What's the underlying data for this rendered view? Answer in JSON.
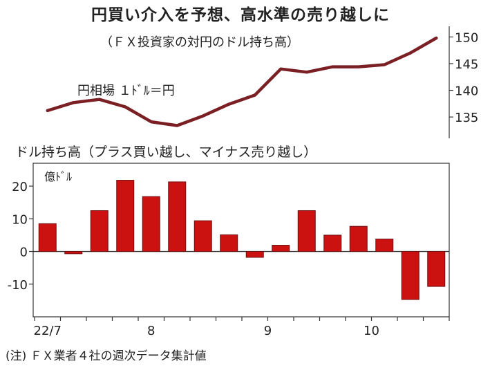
{
  "title": "円買い介入を予想、高水準の売り越しに",
  "subtitle": "（ＦＸ投資家の対円のドル持ち高）",
  "footnote": "(注) ＦＸ業者４社の週次データ集計値",
  "colors": {
    "line": "#7a1f24",
    "bar": "#cc1111",
    "bar_stroke": "#6d1010",
    "axis": "#333333"
  },
  "chart_data": [
    {
      "type": "line",
      "title": "円相場 １ﾄﾞﾙ＝円",
      "series": [
        {
          "name": "円相場",
          "values": [
            136.2,
            137.7,
            138.3,
            136.9,
            134.1,
            133.4,
            135.2,
            137.4,
            139.1,
            144.0,
            143.4,
            144.4,
            144.4,
            144.8,
            147.0,
            149.8
          ]
        }
      ],
      "ylim": [
        131,
        152
      ],
      "yticks": [
        135,
        140,
        145,
        150
      ],
      "ytick_labels": [
        "135",
        "140",
        "145",
        "150"
      ]
    },
    {
      "type": "bar",
      "title": "ドル持ち高（プラス買い越し、マイナス売り越し）",
      "ylabel": "億ﾄﾞﾙ",
      "values": [
        8.5,
        -0.7,
        12.5,
        21.8,
        16.8,
        21.3,
        9.4,
        5.1,
        -1.8,
        1.9,
        12.5,
        5.0,
        7.7,
        3.8,
        -14.7,
        -10.7
      ],
      "ylim": [
        -20,
        27
      ],
      "yticks": [
        20,
        10,
        0,
        -10
      ],
      "ytick_labels": [
        "20",
        "10",
        "0",
        "-10"
      ],
      "x_tick_labels": [
        "22/7",
        "8",
        "9",
        "10"
      ]
    }
  ]
}
